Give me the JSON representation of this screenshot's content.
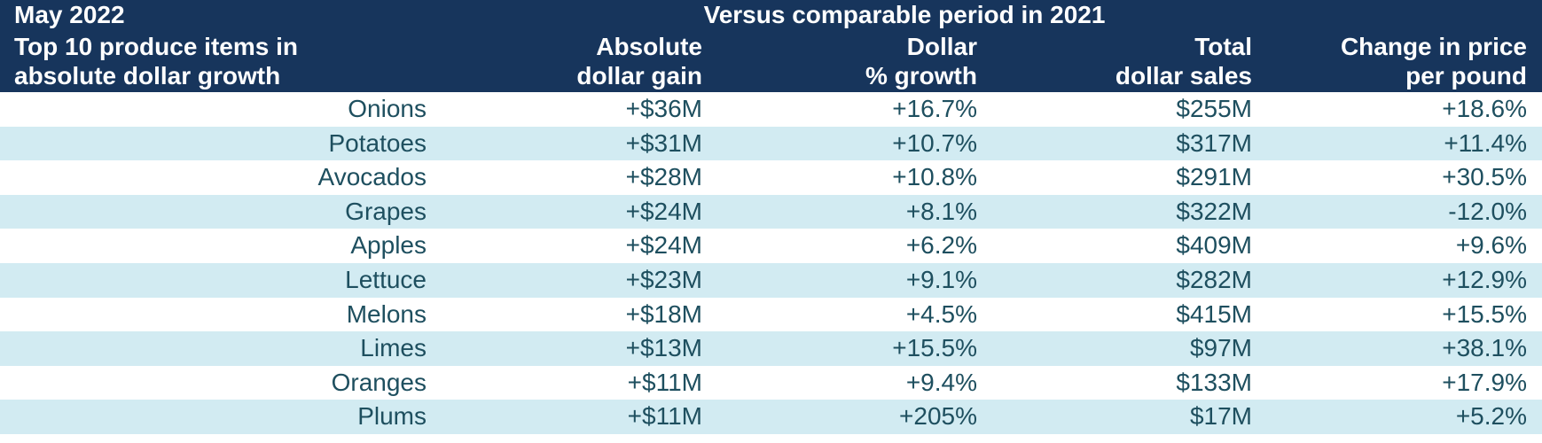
{
  "header": {
    "period": "May 2022",
    "comparison": "Versus comparable period in 2021",
    "title_line1": "Top 10 produce items in",
    "title_line2": "absolute dollar growth",
    "columns": [
      {
        "line1": "Absolute",
        "line2": "dollar gain"
      },
      {
        "line1": "Dollar",
        "line2": "% growth"
      },
      {
        "line1": "Total",
        "line2": "dollar sales"
      },
      {
        "line1": "Change in price",
        "line2": "per pound"
      }
    ]
  },
  "colors": {
    "header_bg": "#17355c",
    "header_text": "#ffffff",
    "row_alt_bg": "#d2ebf2",
    "row_text": "#1e4f5f"
  },
  "rows": [
    {
      "item": "Onions",
      "gain": "+$36M",
      "growth": "+16.7%",
      "sales": "$255M",
      "price": "+18.6%"
    },
    {
      "item": "Potatoes",
      "gain": "+$31M",
      "growth": "+10.7%",
      "sales": "$317M",
      "price": "+11.4%"
    },
    {
      "item": "Avocados",
      "gain": "+$28M",
      "growth": "+10.8%",
      "sales": "$291M",
      "price": "+30.5%"
    },
    {
      "item": "Grapes",
      "gain": "+$24M",
      "growth": "+8.1%",
      "sales": "$322M",
      "price": "-12.0%"
    },
    {
      "item": "Apples",
      "gain": "+$24M",
      "growth": "+6.2%",
      "sales": "$409M",
      "price": "+9.6%"
    },
    {
      "item": "Lettuce",
      "gain": "+$23M",
      "growth": "+9.1%",
      "sales": "$282M",
      "price": "+12.9%"
    },
    {
      "item": "Melons",
      "gain": "+$18M",
      "growth": "+4.5%",
      "sales": "$415M",
      "price": "+15.5%"
    },
    {
      "item": "Limes",
      "gain": "+$13M",
      "growth": "+15.5%",
      "sales": "$97M",
      "price": "+38.1%"
    },
    {
      "item": "Oranges",
      "gain": "+$11M",
      "growth": "+9.4%",
      "sales": "$133M",
      "price": "+17.9%"
    },
    {
      "item": "Plums",
      "gain": "+$11M",
      "growth": "+205%",
      "sales": "$17M",
      "price": "+5.2%"
    }
  ]
}
